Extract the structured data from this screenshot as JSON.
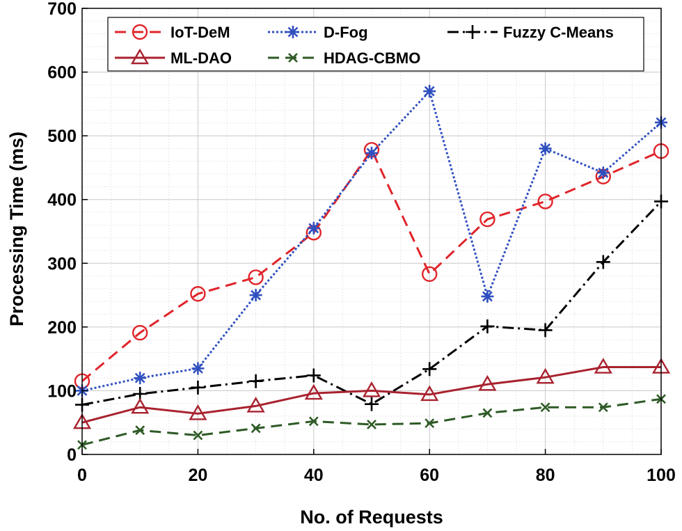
{
  "chart_data": {
    "type": "line",
    "title": "",
    "xlabel": "No. of Requests",
    "ylabel": "Processing Time (ms)",
    "xlim": [
      0,
      100
    ],
    "ylim": [
      0,
      700
    ],
    "xticks": [
      0,
      20,
      40,
      60,
      80,
      100
    ],
    "yticks": [
      0,
      100,
      200,
      300,
      400,
      500,
      600,
      700
    ],
    "grid": true,
    "legend_position": "top",
    "x": [
      0,
      10,
      20,
      30,
      40,
      50,
      60,
      70,
      80,
      90,
      100
    ],
    "series": [
      {
        "name": "IoT-DeM",
        "color": "#e0242a",
        "dash": "dashed",
        "marker": "circle",
        "values": [
          115,
          191,
          252,
          278,
          348,
          478,
          283,
          369,
          397,
          436,
          476
        ]
      },
      {
        "name": "D-Fog",
        "color": "#2f4fbf",
        "dash": "dotted",
        "marker": "asterisk",
        "values": [
          100,
          120,
          135,
          250,
          355,
          473,
          570,
          248,
          480,
          442,
          521
        ]
      },
      {
        "name": "Fuzzy C-Means",
        "color": "#000000",
        "dash": "dashdot",
        "marker": "plus",
        "values": [
          78,
          95,
          105,
          115,
          124,
          79,
          134,
          201,
          195,
          302,
          397
        ]
      },
      {
        "name": "ML-DAO",
        "color": "#a8222e",
        "dash": "solid",
        "marker": "triangle",
        "values": [
          50,
          74,
          64,
          76,
          96,
          100,
          94,
          110,
          121,
          137,
          137
        ]
      },
      {
        "name": "HDAG-CBMO",
        "color": "#2e5a26",
        "dash": "dashed",
        "marker": "x",
        "values": [
          15,
          38,
          30,
          41,
          52,
          47,
          49,
          65,
          74,
          74,
          87
        ]
      }
    ]
  }
}
